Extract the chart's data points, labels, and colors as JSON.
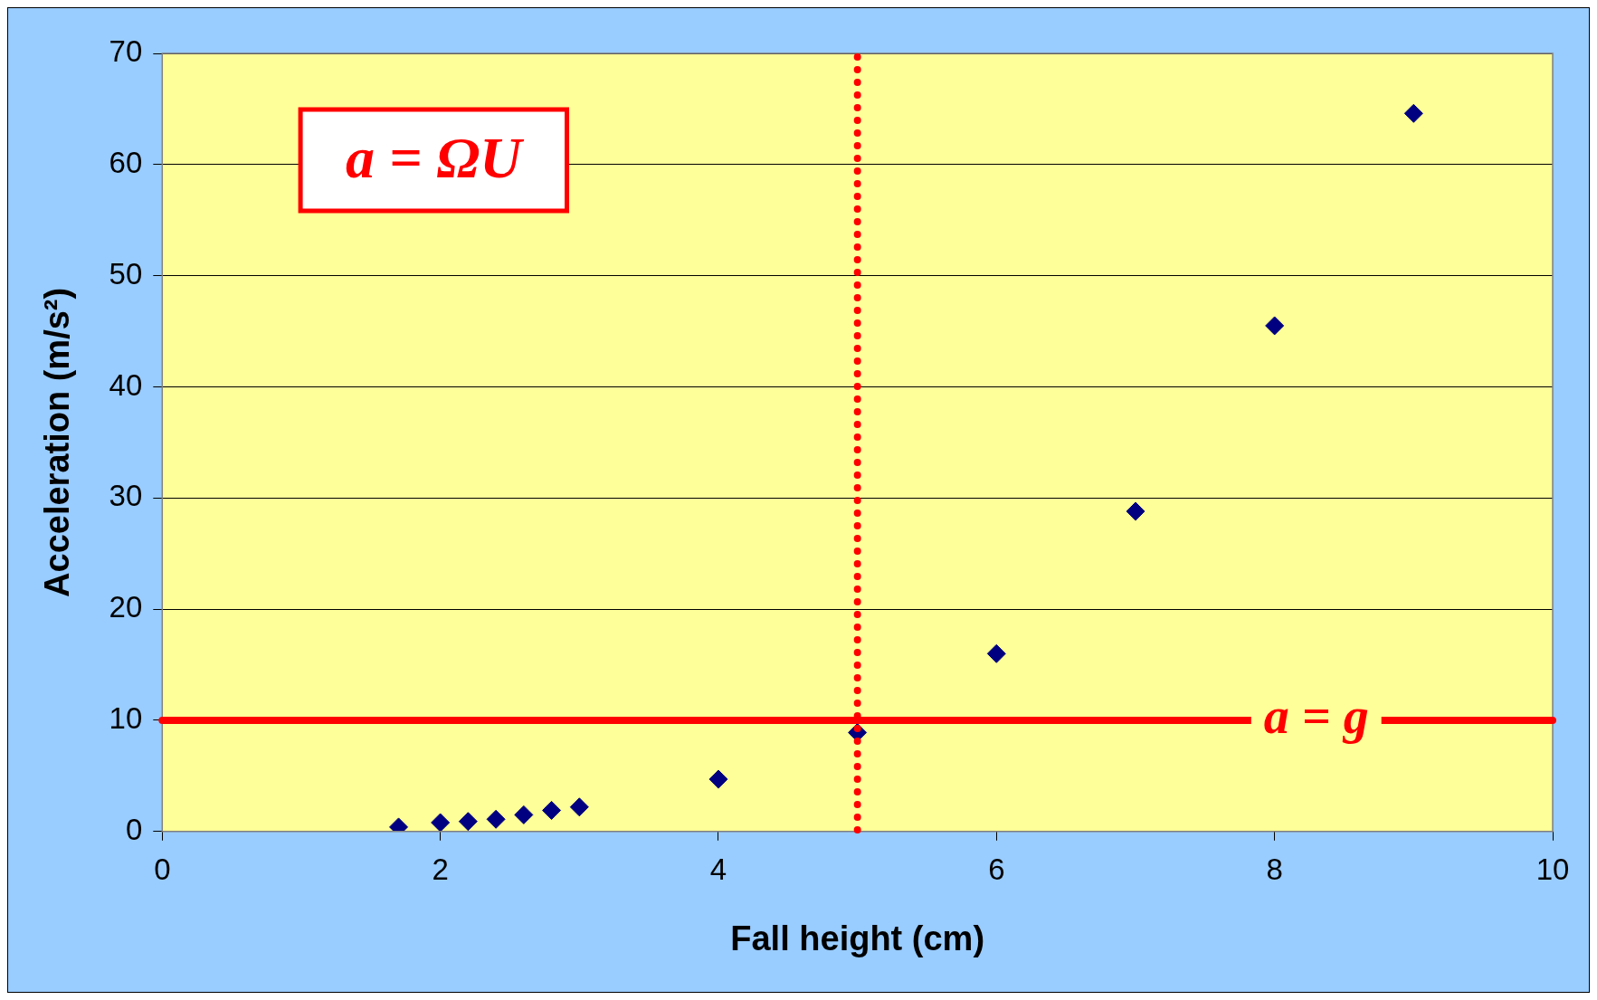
{
  "chart_data": {
    "type": "scatter",
    "xlabel": "Fall height (cm)",
    "ylabel": "Acceleration (m/s²)",
    "x": [
      1.7,
      2,
      2.2,
      2.4,
      2.6,
      2.8,
      3,
      4,
      5,
      6,
      7,
      8,
      9
    ],
    "series": [
      {
        "color": "#000080",
        "values": [
          0.4,
          0.8,
          0.9,
          1.1,
          1.5,
          1.9,
          2.2,
          4.7,
          8.9,
          16.0,
          28.8,
          45.5,
          64.6
        ]
      }
    ],
    "xlim": [
      0,
      10
    ],
    "xticks": [
      0,
      2,
      4,
      6,
      8,
      10
    ],
    "ylim": [
      0,
      70
    ],
    "yticks": [
      0,
      10,
      20,
      30,
      40,
      50,
      60,
      70
    ],
    "grid": "y",
    "marker": "diamond",
    "legend": false,
    "ref_lines": [
      {
        "axis": "y",
        "value": 10,
        "label": "a = g",
        "color": "#ff0000",
        "line_style": "solid"
      },
      {
        "axis": "x",
        "value": 5,
        "color": "#ff0000",
        "line_style": "dotted"
      }
    ],
    "annotations": [
      "a = ΩU"
    ]
  }
}
